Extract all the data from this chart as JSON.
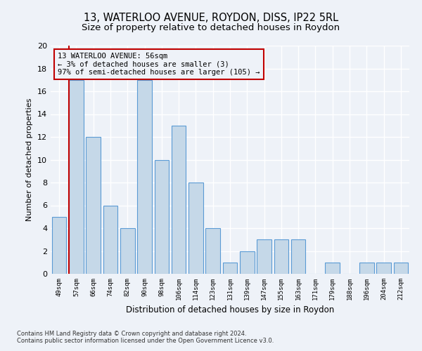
{
  "title": "13, WATERLOO AVENUE, ROYDON, DISS, IP22 5RL",
  "subtitle": "Size of property relative to detached houses in Roydon",
  "xlabel": "Distribution of detached houses by size in Roydon",
  "ylabel": "Number of detached properties",
  "categories": [
    "49sqm",
    "57sqm",
    "66sqm",
    "74sqm",
    "82sqm",
    "90sqm",
    "98sqm",
    "106sqm",
    "114sqm",
    "123sqm",
    "131sqm",
    "139sqm",
    "147sqm",
    "155sqm",
    "163sqm",
    "171sqm",
    "179sqm",
    "188sqm",
    "196sqm",
    "204sqm",
    "212sqm"
  ],
  "values": [
    5,
    17,
    12,
    6,
    4,
    17,
    10,
    13,
    8,
    4,
    1,
    2,
    3,
    3,
    3,
    0,
    1,
    0,
    1,
    1,
    1
  ],
  "bar_color": "#c5d8e8",
  "bar_edge_color": "#5b9bd5",
  "highlight_color": "#c00000",
  "annotation_title": "13 WATERLOO AVENUE: 56sqm",
  "annotation_line1": "← 3% of detached houses are smaller (3)",
  "annotation_line2": "97% of semi-detached houses are larger (105) →",
  "ylim": [
    0,
    20
  ],
  "yticks": [
    0,
    2,
    4,
    6,
    8,
    10,
    12,
    14,
    16,
    18,
    20
  ],
  "footnote1": "Contains HM Land Registry data © Crown copyright and database right 2024.",
  "footnote2": "Contains public sector information licensed under the Open Government Licence v3.0.",
  "background_color": "#eef2f8",
  "grid_color": "#ffffff",
  "title_fontsize": 10.5,
  "subtitle_fontsize": 9.5
}
